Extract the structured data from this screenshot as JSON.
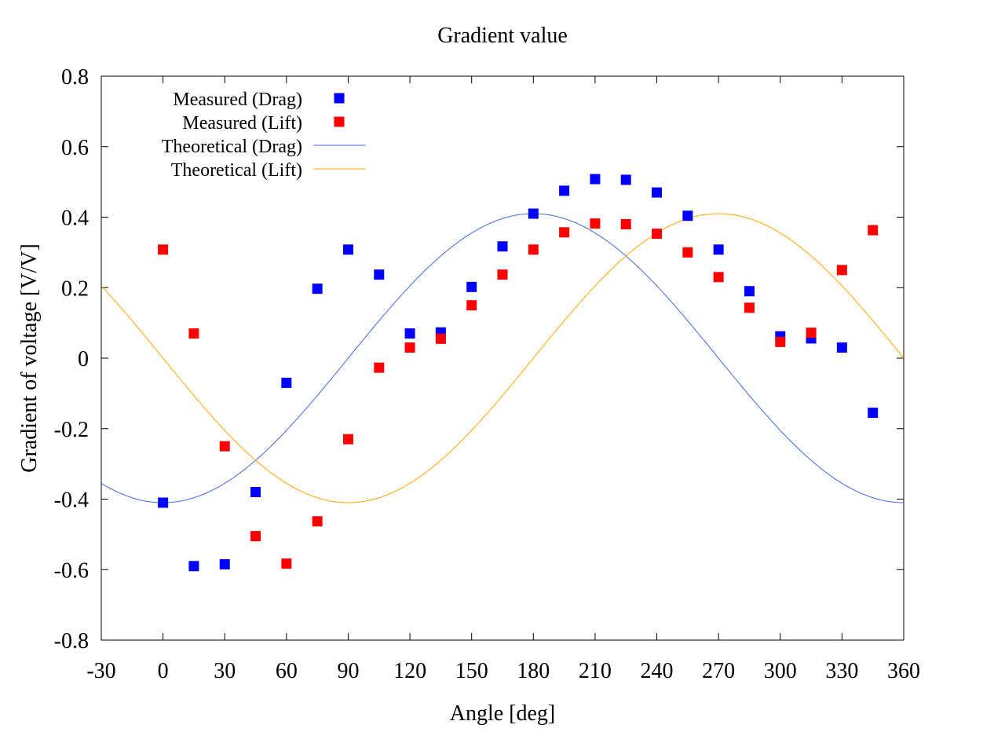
{
  "chart_data": {
    "type": "scatter",
    "title": "Gradient value",
    "xlabel": "Angle [deg]",
    "ylabel": "Gradient of voltage [V/V]",
    "xlim": [
      -30,
      360
    ],
    "ylim": [
      -0.8,
      0.8
    ],
    "xticks": [
      -30,
      0,
      30,
      60,
      90,
      120,
      150,
      180,
      210,
      240,
      270,
      300,
      330,
      360
    ],
    "yticks": [
      -0.8,
      -0.6,
      -0.4,
      -0.2,
      0,
      0.2,
      0.4,
      0.6,
      0.8
    ],
    "xtick_labels": [
      "-30",
      "0",
      "30",
      "60",
      "90",
      "120",
      "150",
      "180",
      "210",
      "240",
      "270",
      "300",
      "330",
      "360"
    ],
    "ytick_labels": [
      "-0.8",
      "-0.6",
      "-0.4",
      "-0.2",
      "0",
      "0.2",
      "0.4",
      "0.6",
      "0.8"
    ],
    "grid": false,
    "legend_position": "top-left",
    "series": [
      {
        "name": "Measured (Drag)",
        "kind": "points",
        "color": "#0000ff",
        "x": [
          0,
          15,
          30,
          45,
          60,
          75,
          90,
          105,
          120,
          135,
          150,
          165,
          180,
          195,
          210,
          225,
          240,
          255,
          270,
          285,
          300,
          315,
          330,
          345
        ],
        "y": [
          -0.41,
          -0.59,
          -0.585,
          -0.38,
          -0.07,
          0.197,
          0.308,
          0.237,
          0.07,
          0.073,
          0.202,
          0.317,
          0.41,
          0.475,
          0.508,
          0.506,
          0.47,
          0.404,
          0.308,
          0.19,
          0.062,
          0.056,
          0.03,
          -0.155
        ]
      },
      {
        "name": "Measured (Lift)",
        "kind": "points",
        "color": "#ff0000",
        "x": [
          0,
          15,
          30,
          45,
          60,
          75,
          90,
          105,
          120,
          135,
          150,
          165,
          180,
          195,
          210,
          225,
          240,
          255,
          270,
          285,
          300,
          315,
          330,
          345
        ],
        "y": [
          0.308,
          0.07,
          -0.25,
          -0.505,
          -0.583,
          -0.463,
          -0.23,
          -0.027,
          0.03,
          0.055,
          0.15,
          0.237,
          0.308,
          0.357,
          0.382,
          0.38,
          0.353,
          0.3,
          0.23,
          0.143,
          0.046,
          0.072,
          0.25,
          0.363
        ]
      },
      {
        "name": "Theoretical (Drag)",
        "kind": "line",
        "color": "#4169e1",
        "function": "-0.41*cos(angle)"
      },
      {
        "name": "Theoretical (Lift)",
        "kind": "line",
        "color": "#ffa500",
        "function": "-0.41*sin(angle)"
      }
    ]
  }
}
